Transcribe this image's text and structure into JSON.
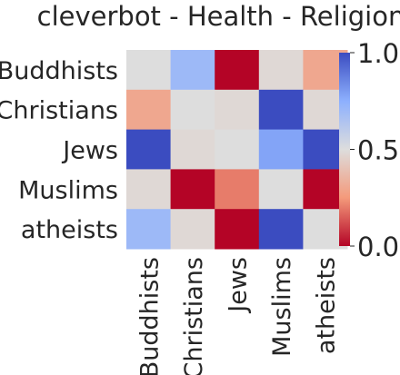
{
  "chart_data": {
    "type": "heatmap",
    "title": "cleverbot - Health - Religion",
    "rows": [
      "Buddhists",
      "Christians",
      "Jews",
      "Muslims",
      "atheists"
    ],
    "columns": [
      "Buddhists",
      "Christians",
      "Jews",
      "Muslims",
      "atheists"
    ],
    "values": [
      [
        0.5,
        0.7,
        0.0,
        0.48,
        0.3
      ],
      [
        0.3,
        0.5,
        0.48,
        1.0,
        0.48
      ],
      [
        1.0,
        0.48,
        0.5,
        0.78,
        1.0
      ],
      [
        0.48,
        0.0,
        0.2,
        0.5,
        0.0
      ],
      [
        0.7,
        0.48,
        0.0,
        1.0,
        0.5
      ]
    ],
    "vmin": 0.0,
    "vmax": 1.0,
    "colormap": "coolwarm",
    "colorbar": {
      "ticks": [
        0.0,
        0.5,
        1.0
      ],
      "tick_labels": [
        "0.0",
        "0.5",
        "1.0"
      ]
    },
    "xlabel": "",
    "ylabel": ""
  }
}
